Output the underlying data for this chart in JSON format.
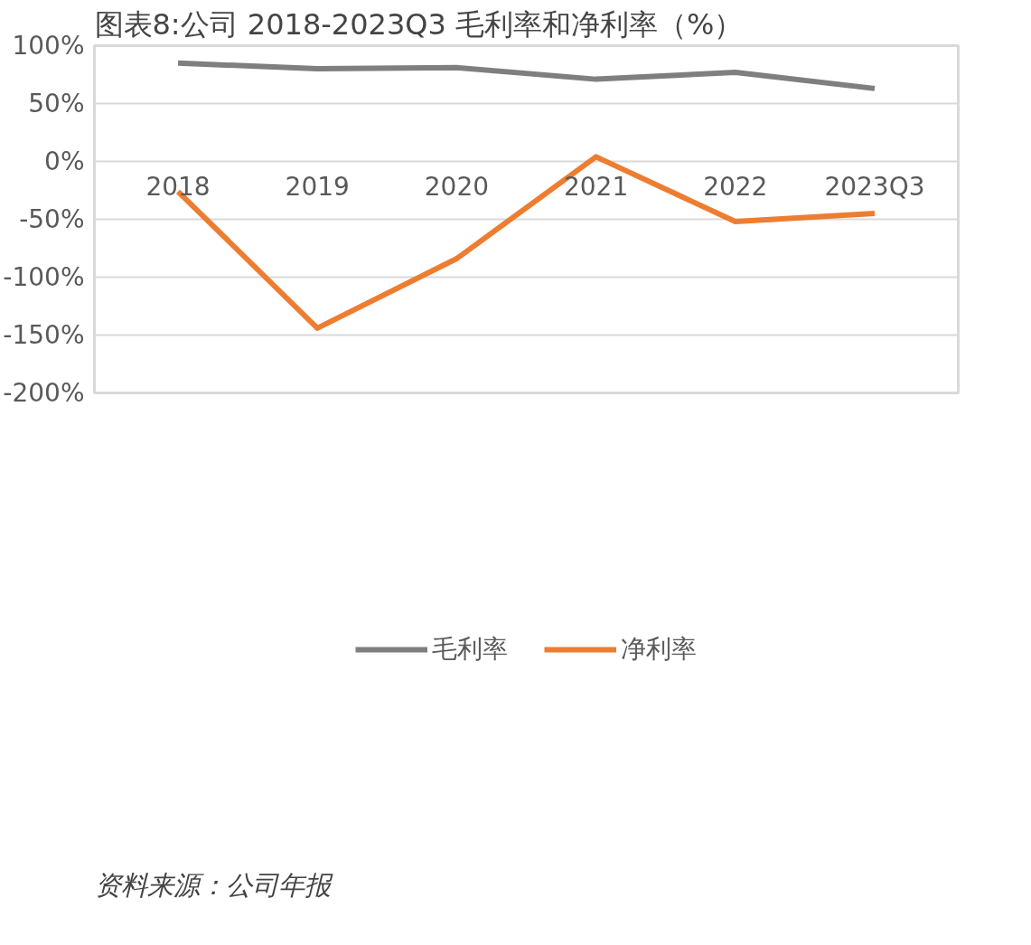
{
  "chart_data": {
    "type": "line",
    "title": "图表8:公司 2018-2023Q3 毛利率和净利率（%）",
    "categories": [
      "2018",
      "2019",
      "2020",
      "2021",
      "2022",
      "2023Q3"
    ],
    "series": [
      {
        "name": "毛利率",
        "color": "#7f7f7f",
        "values": [
          85,
          80,
          81,
          71,
          77,
          63
        ]
      },
      {
        "name": "净利率",
        "color": "#ed7d31",
        "values": [
          -26,
          -144,
          -84,
          4,
          -52,
          -45
        ]
      }
    ],
    "ylim": [
      -200,
      100
    ],
    "yticks": [
      {
        "value": 100,
        "label": "100%"
      },
      {
        "value": 50,
        "label": "50%"
      },
      {
        "value": 0,
        "label": "0%"
      },
      {
        "value": -50,
        "label": "-50%"
      },
      {
        "value": -100,
        "label": "-100%"
      },
      {
        "value": -150,
        "label": "-150%"
      },
      {
        "value": -200,
        "label": "-200%"
      }
    ],
    "grid": "y",
    "legend": "bottom",
    "marker": "none",
    "line_style": "solid",
    "annotations": [
      "资料来源：公司年报"
    ]
  }
}
